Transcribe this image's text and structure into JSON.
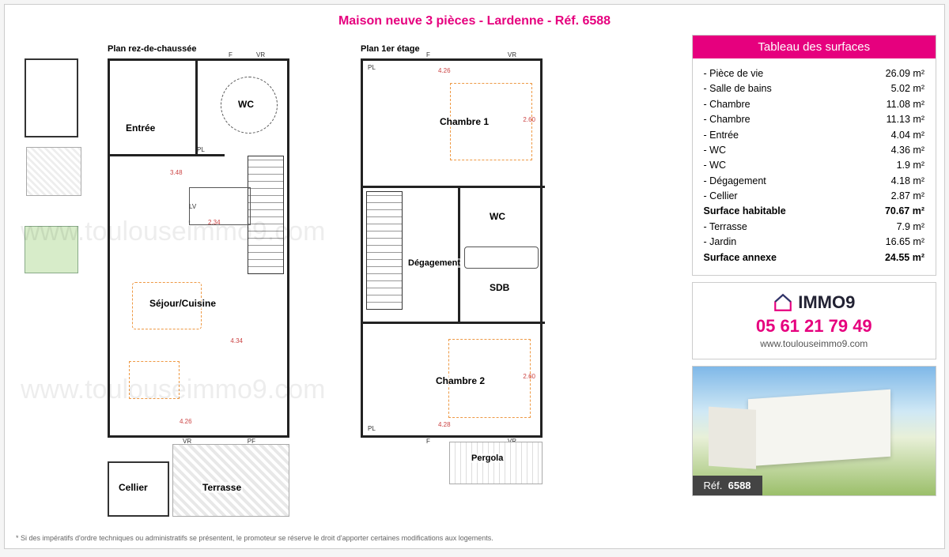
{
  "colors": {
    "accent": "#e6007e",
    "title": "#e6007e",
    "plan_wall": "#222222",
    "furniture_dash": "#e09040",
    "watermark": "rgba(0,0,0,0.07)"
  },
  "title": "Maison neuve 3 pièces - Lardenne - Réf. 6588",
  "plan_labels": {
    "ground": "Plan rez-de-chaussée",
    "first": "Plan 1er étage"
  },
  "rooms_ground": {
    "entree": "Entrée",
    "wc": "WC",
    "sejour": "Séjour/Cuisine",
    "cellier": "Cellier",
    "terrasse": "Terrasse"
  },
  "rooms_first": {
    "ch1": "Chambre 1",
    "ch2": "Chambre 2",
    "wc": "WC",
    "sdb": "SDB",
    "deg": "Dégagement",
    "pergola": "Pergola"
  },
  "markers": {
    "f": "F",
    "vr": "VR",
    "pl": "PL",
    "pf": "PF",
    "lv": "LV"
  },
  "dimensions": {
    "d348": "3.48",
    "d234": "2.34",
    "d426": "4.26",
    "d434": "4.34",
    "d428": "4.28",
    "d260": "2.60"
  },
  "surfaces": {
    "header": "Tableau des surfaces",
    "rows": [
      {
        "label": "- Pièce de vie",
        "value": "26.09 m²",
        "bold": false
      },
      {
        "label": "- Salle de bains",
        "value": "5.02 m²",
        "bold": false
      },
      {
        "label": "- Chambre",
        "value": "11.08 m²",
        "bold": false
      },
      {
        "label": "- Chambre",
        "value": "11.13 m²",
        "bold": false
      },
      {
        "label": "- Entrée",
        "value": "4.04 m²",
        "bold": false
      },
      {
        "label": "- WC",
        "value": "4.36 m²",
        "bold": false
      },
      {
        "label": "- WC",
        "value": "1.9 m²",
        "bold": false
      },
      {
        "label": "- Dégagement",
        "value": "4.18 m²",
        "bold": false
      },
      {
        "label": "- Cellier",
        "value": "2.87 m²",
        "bold": false
      },
      {
        "label": "Surface habitable",
        "value": "70.67 m²",
        "bold": true
      },
      {
        "label": "- Terrasse",
        "value": "7.9 m²",
        "bold": false
      },
      {
        "label": "- Jardin",
        "value": "16.65 m²",
        "bold": false
      },
      {
        "label": "Surface annexe",
        "value": "24.55 m²",
        "bold": true
      }
    ]
  },
  "contact": {
    "brand": "IMMO9",
    "phone": "05 61 21 79 49",
    "website": "www.toulouseimmo9.com"
  },
  "render": {
    "ref_label": "Réf.",
    "ref_value": "6588"
  },
  "watermark": "www.toulouseimmo9.com",
  "disclaimer": "* Si des impératifs d'ordre techniques ou administratifs se présentent, le promoteur se réserve le droit d'apporter certaines modifications aux logements."
}
